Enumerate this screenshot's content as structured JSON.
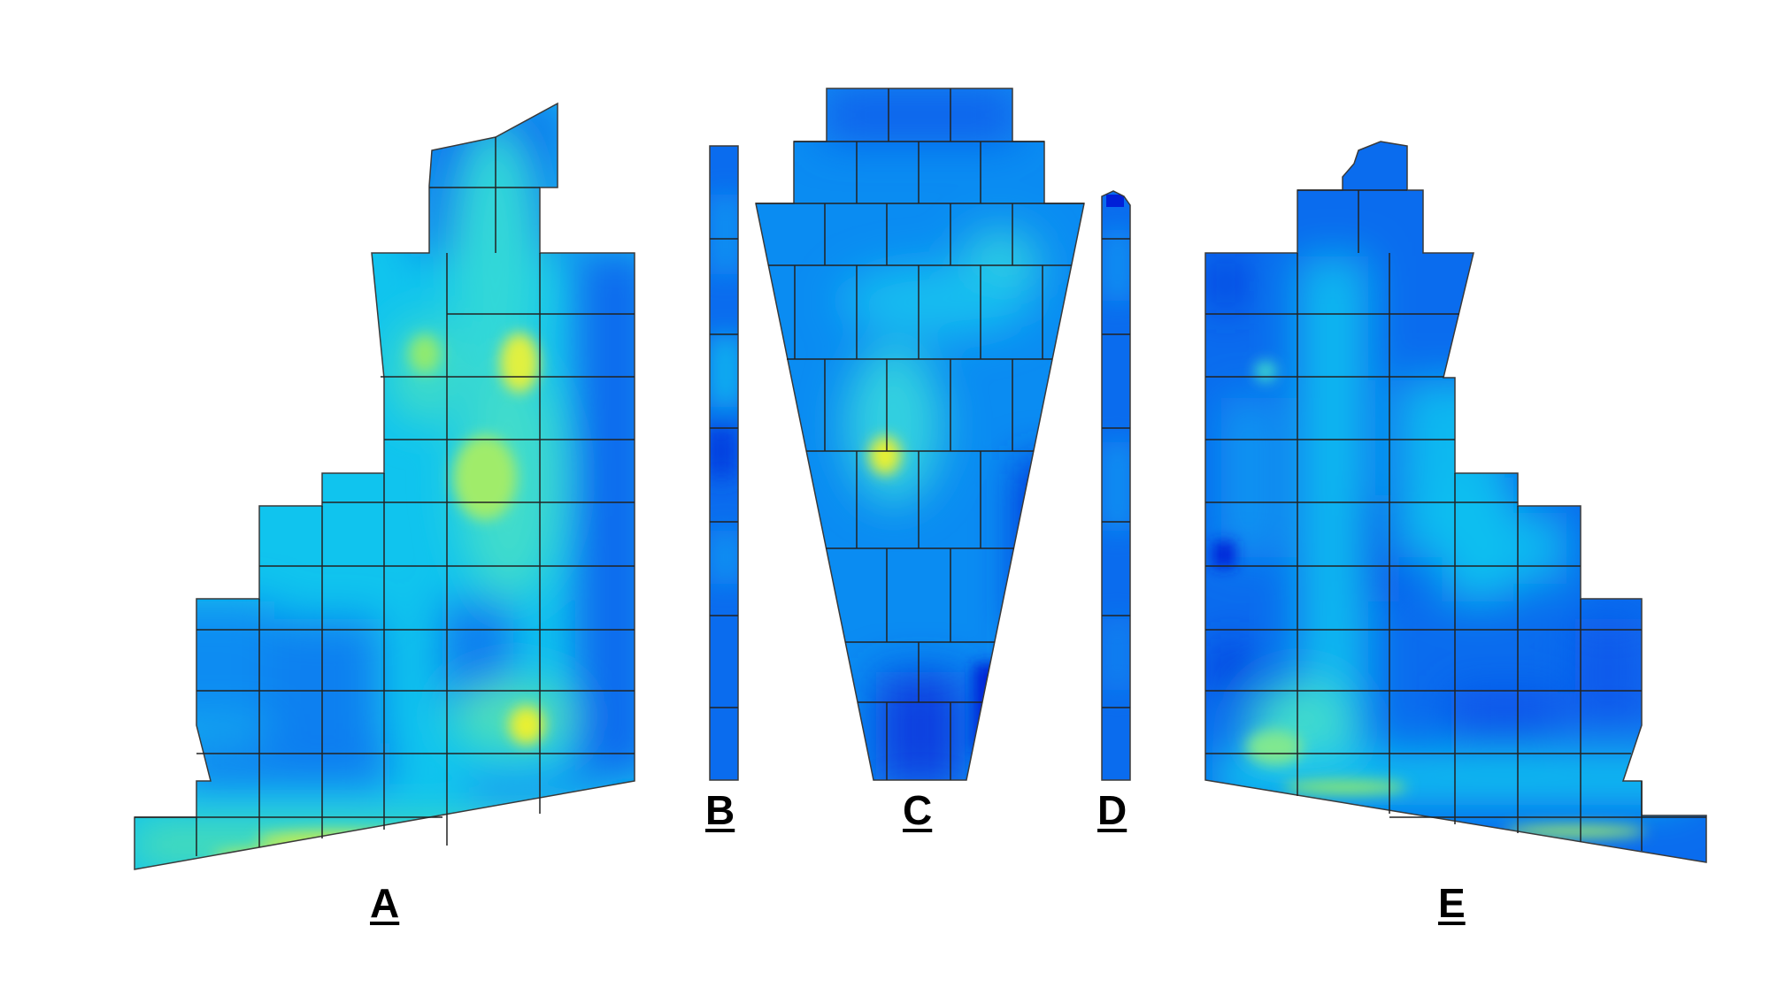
{
  "labels": {
    "A": "A",
    "B": "B",
    "C": "C",
    "D": "D",
    "E": "E"
  },
  "colors": {
    "background": "#ffffff",
    "grid_line": "#222222",
    "outline": "#3a3a3a",
    "scale": [
      "#0016d8",
      "#0050ee",
      "#0a8ef2",
      "#10c8f0",
      "#50e0c0",
      "#a0ec6a",
      "#f0f020"
    ]
  }
}
